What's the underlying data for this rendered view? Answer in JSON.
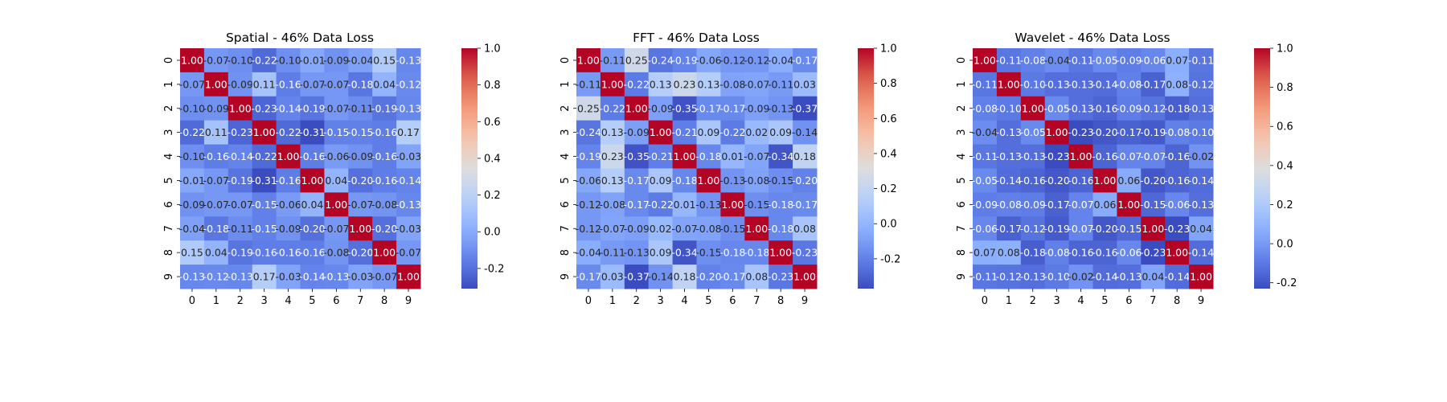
{
  "chart_data": [
    {
      "type": "heatmap",
      "title": "Spatial - 46% Data Loss",
      "x_categories": [
        "0",
        "1",
        "2",
        "3",
        "4",
        "5",
        "6",
        "7",
        "8",
        "9"
      ],
      "y_categories": [
        "0",
        "1",
        "2",
        "3",
        "4",
        "5",
        "6",
        "7",
        "8",
        "9"
      ],
      "colormap": "coolwarm",
      "vmin": -0.31,
      "vmax": 1.0,
      "colorbar_ticks": [
        "-0.2",
        "0.0",
        "0.2",
        "0.4",
        "0.6",
        "0.8",
        "1.0"
      ],
      "colorbar_tick_values": [
        -0.2,
        0.0,
        0.2,
        0.4,
        0.6,
        0.8,
        1.0
      ],
      "values": [
        [
          1.0,
          -0.07,
          -0.1,
          -0.22,
          -0.1,
          -0.01,
          -0.09,
          -0.04,
          0.15,
          -0.13
        ],
        [
          -0.07,
          1.0,
          -0.09,
          0.11,
          -0.16,
          -0.07,
          -0.07,
          -0.18,
          0.04,
          -0.12
        ],
        [
          -0.1,
          -0.09,
          1.0,
          -0.23,
          -0.14,
          -0.19,
          -0.07,
          -0.11,
          -0.19,
          -0.13
        ],
        [
          -0.22,
          0.11,
          -0.23,
          1.0,
          -0.22,
          -0.31,
          -0.15,
          -0.15,
          -0.16,
          0.17
        ],
        [
          -0.1,
          -0.16,
          -0.14,
          -0.22,
          1.0,
          -0.16,
          -0.06,
          -0.09,
          -0.16,
          -0.03
        ],
        [
          -0.01,
          -0.07,
          -0.19,
          -0.31,
          -0.16,
          1.0,
          0.04,
          -0.2,
          -0.16,
          -0.14
        ],
        [
          -0.09,
          -0.07,
          -0.07,
          -0.15,
          -0.06,
          0.04,
          1.0,
          -0.07,
          -0.08,
          -0.13
        ],
        [
          -0.04,
          -0.18,
          -0.11,
          -0.15,
          -0.09,
          -0.2,
          -0.07,
          1.0,
          -0.2,
          -0.03
        ],
        [
          0.15,
          0.04,
          -0.19,
          -0.16,
          -0.16,
          -0.16,
          -0.08,
          -0.2,
          1.0,
          -0.07
        ],
        [
          -0.13,
          -0.12,
          -0.13,
          0.17,
          -0.03,
          -0.14,
          -0.13,
          -0.03,
          -0.07,
          1.0
        ]
      ]
    },
    {
      "type": "heatmap",
      "title": "FFT - 46% Data Loss",
      "x_categories": [
        "0",
        "1",
        "2",
        "3",
        "4",
        "5",
        "6",
        "7",
        "8",
        "9"
      ],
      "y_categories": [
        "0",
        "1",
        "2",
        "3",
        "4",
        "5",
        "6",
        "7",
        "8",
        "9"
      ],
      "colormap": "coolwarm",
      "vmin": -0.37,
      "vmax": 1.0,
      "colorbar_ticks": [
        "-0.2",
        "0.0",
        "0.2",
        "0.4",
        "0.6",
        "0.8",
        "1.0"
      ],
      "colorbar_tick_values": [
        -0.2,
        0.0,
        0.2,
        0.4,
        0.6,
        0.8,
        1.0
      ],
      "values": [
        [
          1.0,
          -0.11,
          0.25,
          -0.24,
          -0.19,
          -0.06,
          -0.12,
          -0.12,
          -0.04,
          -0.17
        ],
        [
          -0.11,
          1.0,
          -0.22,
          0.13,
          0.23,
          0.13,
          -0.08,
          -0.07,
          -0.11,
          0.03
        ],
        [
          0.25,
          -0.22,
          1.0,
          -0.09,
          -0.35,
          -0.17,
          -0.17,
          -0.09,
          -0.13,
          -0.37
        ],
        [
          -0.24,
          0.13,
          -0.09,
          1.0,
          -0.21,
          0.09,
          -0.22,
          0.02,
          0.09,
          -0.14
        ],
        [
          -0.19,
          0.23,
          -0.35,
          -0.21,
          1.0,
          -0.18,
          0.01,
          -0.07,
          -0.34,
          0.18
        ],
        [
          -0.06,
          0.13,
          -0.17,
          0.09,
          -0.18,
          1.0,
          -0.13,
          -0.08,
          -0.15,
          -0.2
        ],
        [
          -0.12,
          -0.08,
          -0.17,
          -0.22,
          0.01,
          -0.13,
          1.0,
          -0.15,
          -0.18,
          -0.17
        ],
        [
          -0.12,
          -0.07,
          -0.09,
          0.02,
          -0.07,
          -0.08,
          -0.15,
          1.0,
          -0.18,
          0.08
        ],
        [
          -0.04,
          -0.11,
          -0.13,
          0.09,
          -0.34,
          -0.15,
          -0.18,
          -0.18,
          1.0,
          -0.23
        ],
        [
          -0.17,
          0.03,
          -0.37,
          -0.14,
          0.18,
          -0.2,
          -0.17,
          0.08,
          -0.23,
          1.0
        ]
      ]
    },
    {
      "type": "heatmap",
      "title": "Wavelet - 46% Data Loss",
      "x_categories": [
        "0",
        "1",
        "2",
        "3",
        "4",
        "5",
        "6",
        "7",
        "8",
        "9"
      ],
      "y_categories": [
        "0",
        "1",
        "2",
        "3",
        "4",
        "5",
        "6",
        "7",
        "8",
        "9"
      ],
      "colormap": "coolwarm",
      "vmin": -0.23,
      "vmax": 1.0,
      "colorbar_ticks": [
        "-0.2",
        "0.0",
        "0.2",
        "0.4",
        "0.6",
        "0.8",
        "1.0"
      ],
      "colorbar_tick_values": [
        -0.2,
        0.0,
        0.2,
        0.4,
        0.6,
        0.8,
        1.0
      ],
      "values": [
        [
          1.0,
          -0.11,
          -0.08,
          -0.04,
          -0.11,
          -0.05,
          -0.09,
          -0.06,
          0.07,
          -0.11
        ],
        [
          -0.11,
          1.0,
          -0.1,
          -0.13,
          -0.13,
          -0.14,
          -0.08,
          -0.17,
          0.08,
          -0.12
        ],
        [
          -0.08,
          -0.1,
          1.0,
          -0.05,
          -0.13,
          -0.16,
          -0.09,
          -0.12,
          -0.18,
          -0.13
        ],
        [
          -0.04,
          -0.13,
          -0.05,
          1.0,
          -0.23,
          -0.2,
          -0.17,
          -0.19,
          -0.08,
          -0.1
        ],
        [
          -0.11,
          -0.13,
          -0.13,
          -0.23,
          1.0,
          -0.16,
          -0.07,
          -0.07,
          -0.16,
          -0.02
        ],
        [
          -0.05,
          -0.14,
          -0.16,
          -0.2,
          -0.16,
          1.0,
          0.06,
          -0.2,
          -0.16,
          -0.14
        ],
        [
          -0.09,
          -0.08,
          -0.09,
          -0.17,
          -0.07,
          0.06,
          1.0,
          -0.15,
          -0.06,
          -0.13
        ],
        [
          -0.06,
          -0.17,
          -0.12,
          -0.19,
          -0.07,
          -0.2,
          -0.15,
          1.0,
          -0.23,
          0.04
        ],
        [
          0.07,
          0.08,
          -0.18,
          -0.08,
          -0.16,
          -0.16,
          -0.06,
          -0.23,
          1.0,
          -0.14
        ],
        [
          -0.11,
          -0.12,
          -0.13,
          -0.1,
          -0.02,
          -0.14,
          -0.13,
          0.04,
          -0.14,
          1.0
        ]
      ]
    }
  ]
}
